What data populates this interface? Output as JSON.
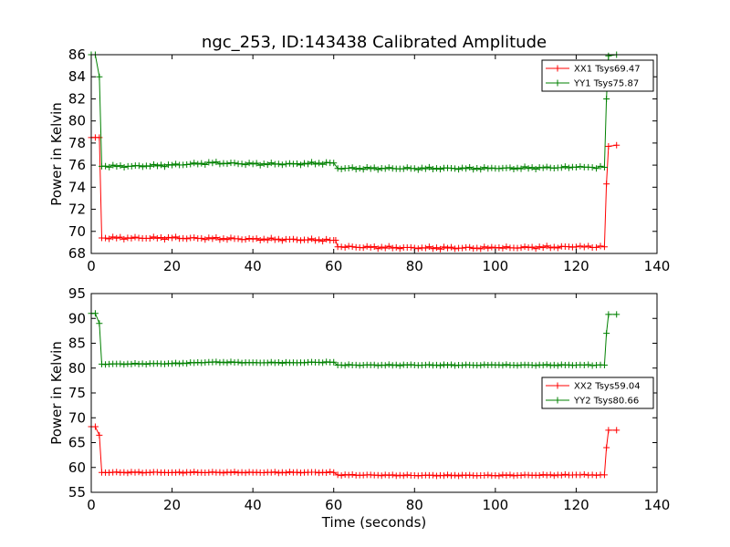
{
  "colors": {
    "xx": "#ff0000",
    "yy": "#008000",
    "axis": "#000000",
    "background": "#ffffff"
  },
  "chart_data": [
    {
      "type": "line",
      "title": "ngc_253, ID:143438 Calibrated Amplitude",
      "xlabel": "",
      "ylabel": "Power in Kelvin",
      "xlim": [
        0,
        140
      ],
      "ylim": [
        68,
        86
      ],
      "xticks": [
        0,
        20,
        40,
        60,
        80,
        100,
        120,
        140
      ],
      "yticks": [
        68,
        70,
        72,
        74,
        76,
        78,
        80,
        82,
        84,
        86
      ],
      "xtick_labels": [
        "0",
        "20",
        "40",
        "60",
        "80",
        "100",
        "120",
        "140"
      ],
      "ytick_labels": [
        "68",
        "70",
        "72",
        "74",
        "76",
        "78",
        "80",
        "82",
        "84",
        "86"
      ],
      "legend_position": "top-right",
      "series": [
        {
          "name": "XX1 Tsys69.47",
          "color": "#ff0000",
          "marker": "+",
          "points": [
            [
              0,
              78.5
            ],
            [
              1,
              78.5
            ],
            [
              2,
              78.5
            ],
            [
              2.6,
              69.4
            ],
            [
              20,
              69.4
            ],
            [
              40,
              69.3
            ],
            [
              60,
              69.2
            ],
            [
              60.5,
              69.2
            ],
            [
              61,
              68.6
            ],
            [
              80,
              68.5
            ],
            [
              100,
              68.5
            ],
            [
              120,
              68.6
            ],
            [
              127,
              68.6
            ],
            [
              127.5,
              74.3
            ],
            [
              128,
              77.7
            ],
            [
              130,
              77.8
            ]
          ]
        },
        {
          "name": "YY1 Tsys75.87",
          "color": "#008000",
          "marker": "+",
          "points": [
            [
              0,
              86
            ],
            [
              1,
              86
            ],
            [
              2,
              84
            ],
            [
              2.6,
              75.9
            ],
            [
              10,
              75.9
            ],
            [
              20,
              76.0
            ],
            [
              30,
              76.2
            ],
            [
              40,
              76.1
            ],
            [
              50,
              76.1
            ],
            [
              60,
              76.2
            ],
            [
              61,
              75.7
            ],
            [
              80,
              75.7
            ],
            [
              100,
              75.7
            ],
            [
              120,
              75.8
            ],
            [
              127,
              75.8
            ],
            [
              127.5,
              82
            ],
            [
              128,
              85.9
            ],
            [
              130,
              86
            ]
          ]
        }
      ]
    },
    {
      "type": "line",
      "title": "",
      "xlabel": "Time (seconds)",
      "ylabel": "Power in Kelvin",
      "xlim": [
        0,
        140
      ],
      "ylim": [
        55,
        95
      ],
      "xticks": [
        0,
        20,
        40,
        60,
        80,
        100,
        120,
        140
      ],
      "yticks": [
        55,
        60,
        65,
        70,
        75,
        80,
        85,
        90,
        95
      ],
      "xtick_labels": [
        "0",
        "20",
        "40",
        "60",
        "80",
        "100",
        "120",
        "140"
      ],
      "ytick_labels": [
        "55",
        "60",
        "65",
        "70",
        "75",
        "80",
        "85",
        "90",
        "95"
      ],
      "legend_position": "center-right",
      "series": [
        {
          "name": "XX2 Tsys59.04",
          "color": "#ff0000",
          "marker": "+",
          "points": [
            [
              0,
              68.2
            ],
            [
              1,
              68.2
            ],
            [
              2,
              66.5
            ],
            [
              2.6,
              59.0
            ],
            [
              20,
              59.0
            ],
            [
              40,
              59.0
            ],
            [
              60,
              59.0
            ],
            [
              61,
              58.5
            ],
            [
              80,
              58.4
            ],
            [
              100,
              58.4
            ],
            [
              120,
              58.5
            ],
            [
              127,
              58.5
            ],
            [
              127.5,
              64
            ],
            [
              128,
              67.5
            ],
            [
              130,
              67.5
            ]
          ]
        },
        {
          "name": "YY2 Tsys80.66",
          "color": "#008000",
          "marker": "+",
          "points": [
            [
              0,
              91
            ],
            [
              1,
              91
            ],
            [
              2,
              89
            ],
            [
              2.6,
              80.8
            ],
            [
              20,
              80.9
            ],
            [
              30,
              81.2
            ],
            [
              40,
              81.1
            ],
            [
              50,
              81.1
            ],
            [
              60,
              81.2
            ],
            [
              61,
              80.6
            ],
            [
              80,
              80.6
            ],
            [
              100,
              80.6
            ],
            [
              120,
              80.6
            ],
            [
              127,
              80.6
            ],
            [
              127.5,
              87
            ],
            [
              128,
              90.8
            ],
            [
              130,
              90.8
            ]
          ]
        }
      ]
    }
  ]
}
